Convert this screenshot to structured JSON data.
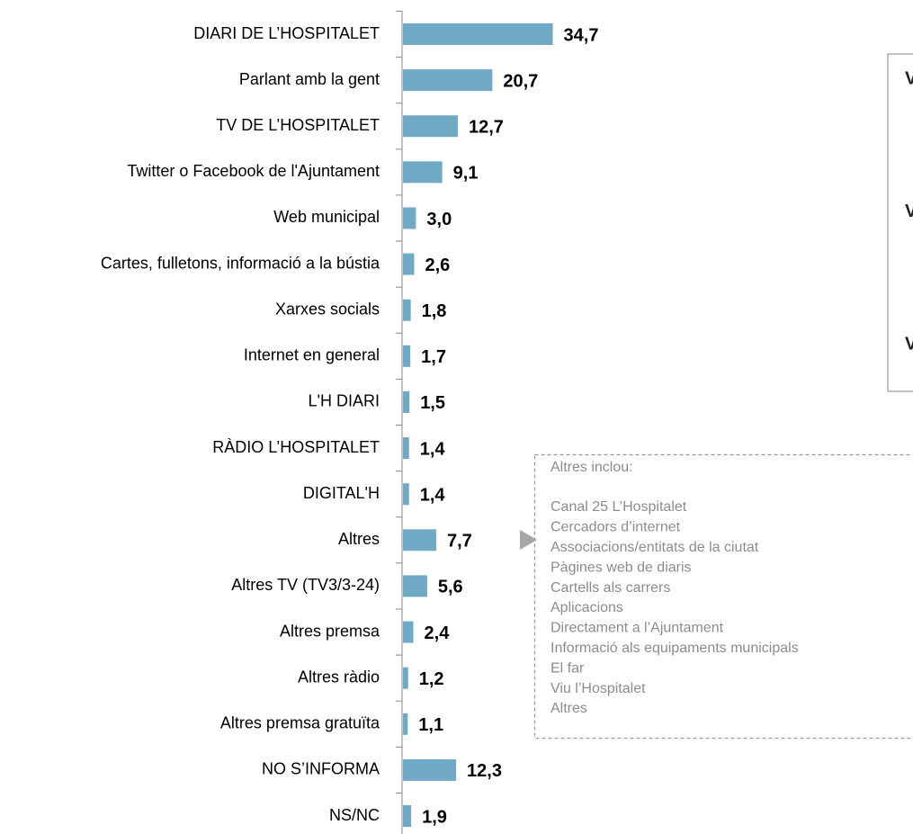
{
  "chart_data": {
    "type": "barh",
    "categories": [
      "DIARI DE L’HOSPITALET",
      "Parlant amb la gent",
      "TV DE L’HOSPITALET",
      "Twitter o Facebook de l'Ajuntament",
      "Web municipal",
      "Cartes, fulletons, informació a la bústia",
      "Xarxes socials",
      "Internet en general",
      "L'H DIARI",
      "RÀDIO L’HOSPITALET",
      "DIGITAL'H",
      "Altres",
      "Altres TV (TV3/3-24)",
      "Altres premsa",
      "Altres ràdio",
      "Altres premsa gratuïta",
      "NO S’INFORMA",
      "NS/NC"
    ],
    "values": [
      34.7,
      20.7,
      12.7,
      9.1,
      3.0,
      2.6,
      1.8,
      1.7,
      1.5,
      1.4,
      1.4,
      7.7,
      5.6,
      2.4,
      1.2,
      1.1,
      12.3,
      1.9
    ],
    "value_labels": [
      "34,7",
      "20,7",
      "12,7",
      "9,1",
      "3,0",
      "2,6",
      "1,8",
      "1,7",
      "1,5",
      "1,4",
      "1,4",
      "7,7",
      "5,6",
      "2,4",
      "1,2",
      "1,1",
      "12,3",
      "1,9"
    ],
    "color": "#70a9c5"
  },
  "note": {
    "title": "Altres inclou:",
    "items": [
      "Canal 25 L’Hospitalet",
      "Cercadors d’internet",
      "Associacions/entitats de la ciutat",
      "Pàgines web de diaris",
      "Cartells als carrers",
      "Aplicacions",
      "Directament a l’Ajuntament",
      "Informació als equipaments municipals",
      "El far",
      "Viu l’Hospitalet",
      "Altres"
    ]
  },
  "side_panel": {
    "items": [
      "V",
      "V",
      "V"
    ]
  }
}
